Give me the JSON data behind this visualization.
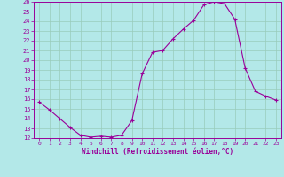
{
  "x_values": [
    0,
    1,
    2,
    3,
    4,
    5,
    6,
    7,
    8,
    9,
    10,
    11,
    12,
    13,
    14,
    15,
    16,
    17,
    18,
    19,
    20,
    21,
    22,
    23
  ],
  "y_values": [
    15.7,
    14.9,
    14.0,
    13.1,
    12.3,
    12.1,
    12.2,
    12.1,
    12.3,
    13.8,
    18.6,
    20.8,
    21.0,
    22.2,
    23.2,
    24.1,
    25.7,
    26.0,
    25.8,
    24.2,
    19.2,
    16.8,
    16.3,
    15.9
  ],
  "line_color": "#990099",
  "marker_color": "#990099",
  "bg_color": "#b3e8e8",
  "grid_color": "#99ccbb",
  "xlabel": "Windchill (Refroidissement éolien,°C)",
  "xlabel_color": "#990099",
  "tick_color": "#990099",
  "axis_color": "#990099",
  "ylim": [
    12,
    26
  ],
  "xlim": [
    -0.5,
    23.5
  ],
  "yticks": [
    12,
    13,
    14,
    15,
    16,
    17,
    18,
    19,
    20,
    21,
    22,
    23,
    24,
    25,
    26
  ],
  "xticks": [
    0,
    1,
    2,
    3,
    4,
    5,
    6,
    7,
    8,
    9,
    10,
    11,
    12,
    13,
    14,
    15,
    16,
    17,
    18,
    19,
    20,
    21,
    22,
    23
  ]
}
